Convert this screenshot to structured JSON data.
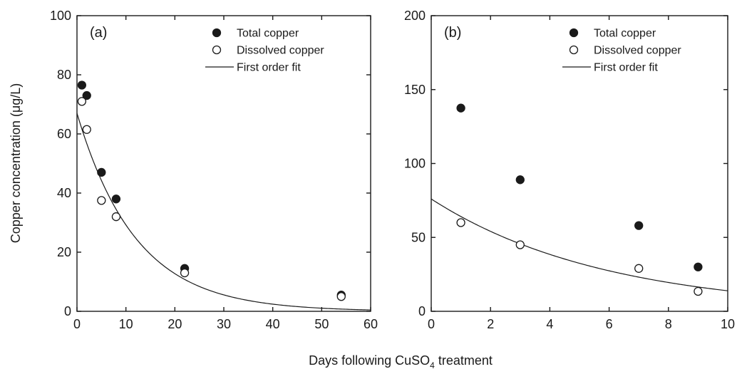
{
  "chart_data": [
    {
      "type": "scatter",
      "panel_label": "(a)",
      "xlim": [
        0,
        60
      ],
      "ylim": [
        0,
        100
      ],
      "xticks": [
        0,
        10,
        20,
        30,
        40,
        50,
        60
      ],
      "yticks": [
        0,
        20,
        40,
        60,
        80,
        100
      ],
      "series": [
        {
          "name": "Total copper",
          "marker": "filled-circle",
          "points": [
            {
              "x": 1,
              "y": 76.5
            },
            {
              "x": 2,
              "y": 73
            },
            {
              "x": 5,
              "y": 47
            },
            {
              "x": 8,
              "y": 38
            },
            {
              "x": 22,
              "y": 14.5
            },
            {
              "x": 54,
              "y": 5.5
            }
          ]
        },
        {
          "name": "Dissolved copper",
          "marker": "open-circle",
          "points": [
            {
              "x": 1,
              "y": 71
            },
            {
              "x": 2,
              "y": 61.5
            },
            {
              "x": 5,
              "y": 37.5
            },
            {
              "x": 8,
              "y": 32
            },
            {
              "x": 22,
              "y": 13
            },
            {
              "x": 54,
              "y": 5
            }
          ]
        },
        {
          "name": "First order fit",
          "marker": "line",
          "model": "first-order decay",
          "c0": 67,
          "k": 0.083
        }
      ],
      "legend_placement": "top-right"
    },
    {
      "type": "scatter",
      "panel_label": "(b)",
      "xlim": [
        0,
        10
      ],
      "ylim": [
        0,
        200
      ],
      "xticks": [
        0,
        2,
        4,
        6,
        8,
        10
      ],
      "yticks": [
        0,
        50,
        100,
        150,
        200
      ],
      "series": [
        {
          "name": "Total copper",
          "marker": "filled-circle",
          "points": [
            {
              "x": 1,
              "y": 137.5
            },
            {
              "x": 3,
              "y": 89
            },
            {
              "x": 7,
              "y": 58
            },
            {
              "x": 9,
              "y": 30
            }
          ]
        },
        {
          "name": "Dissolved copper",
          "marker": "open-circle",
          "points": [
            {
              "x": 1,
              "y": 60
            },
            {
              "x": 3,
              "y": 45
            },
            {
              "x": 7,
              "y": 29
            },
            {
              "x": 9,
              "y": 13.5
            }
          ]
        },
        {
          "name": "First order fit",
          "marker": "line",
          "model": "first-order decay",
          "c0": 76,
          "k": 0.17
        }
      ],
      "legend_placement": "top-right"
    }
  ],
  "ylabel": "Copper concentration (μg/L)",
  "xlabel": {
    "prefix": "Days following CuSO",
    "subscript": "4",
    "suffix": " treatment"
  }
}
